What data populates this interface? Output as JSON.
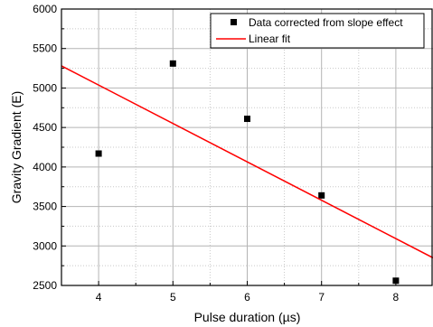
{
  "chart_data": {
    "type": "scatter",
    "xlabel": "Pulse duration (µs)",
    "ylabel": "Gravity Gradient (E)",
    "xlim": [
      3.5,
      8.5
    ],
    "ylim": [
      2500,
      6000
    ],
    "xticks": [
      4,
      5,
      6,
      7,
      8
    ],
    "yticks": [
      2500,
      3000,
      3500,
      4000,
      4500,
      5000,
      5500,
      6000
    ],
    "grid": true,
    "legend_position": "top-right",
    "series": [
      {
        "name": "Data corrected from slope effect",
        "kind": "scatter",
        "marker": "square",
        "color": "#000000",
        "points": [
          {
            "x": 4,
            "y": 4170
          },
          {
            "x": 5,
            "y": 5310
          },
          {
            "x": 6,
            "y": 4610
          },
          {
            "x": 7,
            "y": 3640
          },
          {
            "x": 8,
            "y": 2560
          }
        ]
      },
      {
        "name": "Linear fit",
        "kind": "line",
        "color": "#ff0000",
        "points": [
          {
            "x": 3.5,
            "y": 5280
          },
          {
            "x": 8.5,
            "y": 2850
          }
        ]
      }
    ]
  }
}
